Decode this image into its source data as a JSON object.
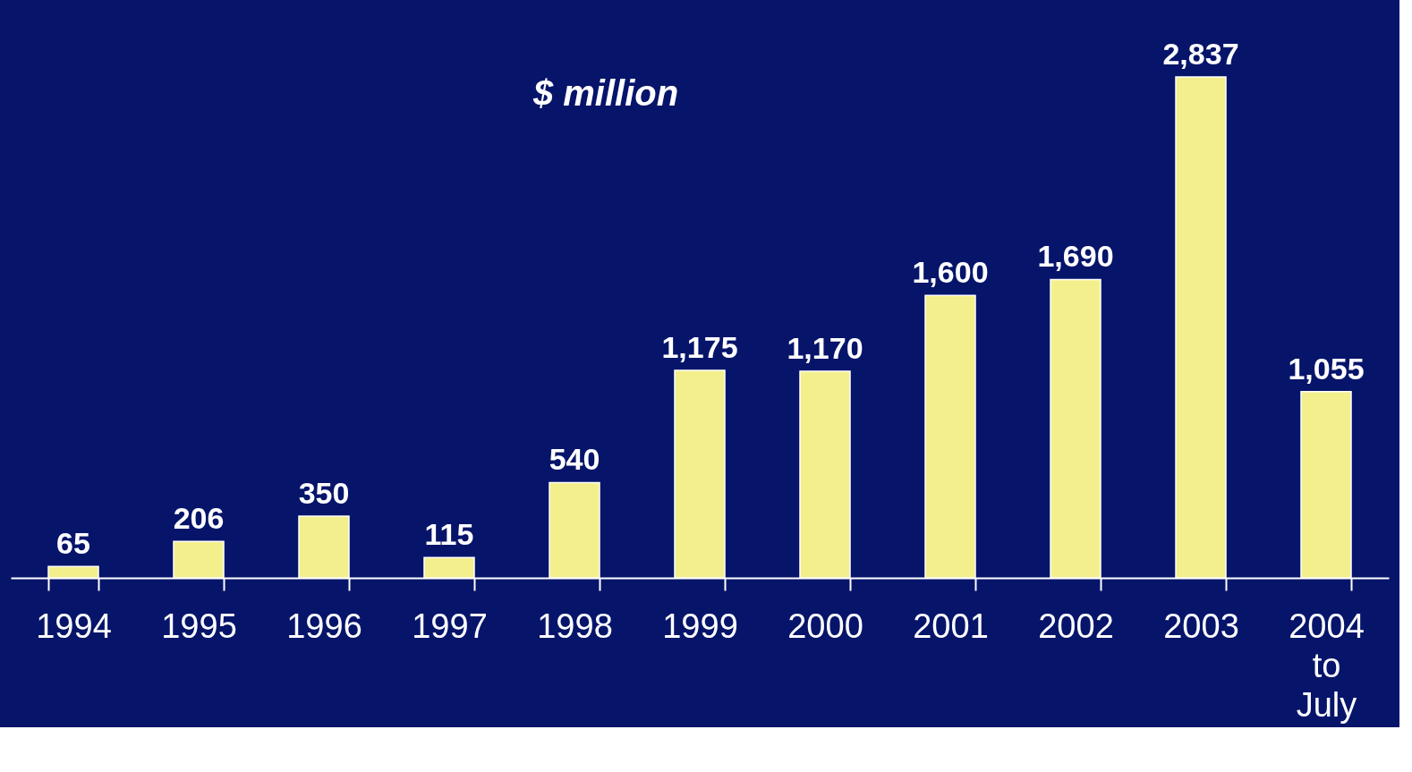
{
  "chart_data": {
    "type": "bar",
    "ylabel": "$ million",
    "categories": [
      "1994",
      "1995",
      "1996",
      "1997",
      "1998",
      "1999",
      "2000",
      "2001",
      "2002",
      "2003",
      "2004 to July"
    ],
    "values": [
      65,
      206,
      350,
      115,
      540,
      1175,
      1170,
      1600,
      1690,
      2837,
      1055
    ],
    "value_labels": [
      "65",
      "206",
      "350",
      "115",
      "540",
      "1,175",
      "1,170",
      "1,600",
      "1,690",
      "2,837",
      "1,055"
    ],
    "color": "#f3ef8c"
  }
}
